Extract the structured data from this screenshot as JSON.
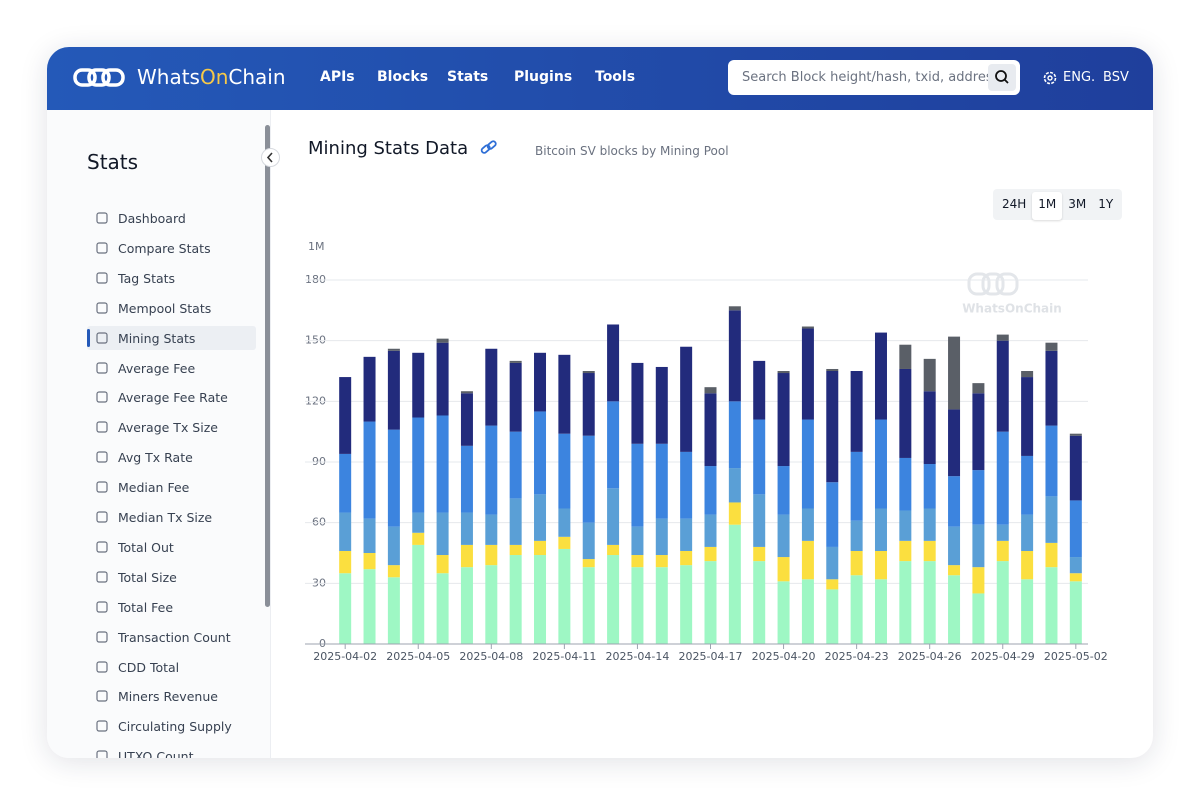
{
  "header": {
    "brand": [
      "Whats",
      "On",
      "Chain"
    ],
    "nav": [
      "APIs",
      "Blocks",
      "Stats",
      "Plugins",
      "Tools"
    ],
    "search_placeholder": "Search Block height/hash, txid, address",
    "language": "ENG.",
    "network": "BSV"
  },
  "sidebar": {
    "title": "Stats",
    "active_index": 4,
    "items": [
      "Dashboard",
      "Compare Stats",
      "Tag Stats",
      "Mempool Stats",
      "Mining Stats",
      "Average Fee",
      "Average Fee Rate",
      "Average Tx Size",
      "Avg Tx Rate",
      "Median Fee",
      "Median Tx Size",
      "Total Out",
      "Total Size",
      "Total Fee",
      "Transaction Count",
      "CDD Total",
      "Miners Revenue",
      "Circulating Supply",
      "UTXO Count"
    ]
  },
  "page": {
    "title": "Mining Stats Data",
    "subtitle": "Bitcoin SV blocks by Mining Pool",
    "ranges": [
      "24H",
      "1M",
      "3M",
      "1Y"
    ],
    "active_range": 1
  },
  "chart_data": {
    "type": "bar",
    "stacked": true,
    "y_label": "1M",
    "watermark": "WhatsOnChain",
    "grid": true,
    "ylim": [
      0,
      180
    ],
    "yticks": [
      0,
      30,
      60,
      90,
      120,
      150,
      180
    ],
    "categories": [
      "2025-04-02",
      null,
      null,
      "2025-04-05",
      null,
      null,
      "2025-04-08",
      null,
      null,
      "2025-04-11",
      null,
      null,
      "2025-04-14",
      null,
      null,
      "2025-04-17",
      null,
      null,
      "2025-04-20",
      null,
      null,
      "2025-04-23",
      null,
      null,
      "2025-04-26",
      null,
      null,
      "2025-04-29",
      null,
      null,
      "2025-05-02"
    ],
    "series": [
      {
        "color": "#9ef7c4",
        "values": [
          35,
          37,
          33,
          49,
          35,
          38,
          39,
          44,
          44,
          47,
          38,
          44,
          38,
          38,
          39,
          41,
          59,
          41,
          31,
          32,
          27,
          34,
          32,
          41,
          41,
          34,
          25,
          41,
          32,
          38,
          31
        ]
      },
      {
        "color": "#fbdf3f",
        "values": [
          11,
          8,
          6,
          6,
          9,
          11,
          10,
          5,
          7,
          6,
          4,
          5,
          6,
          6,
          7,
          7,
          11,
          7,
          12,
          19,
          5,
          12,
          14,
          10,
          10,
          5,
          13,
          10,
          14,
          12,
          4
        ]
      },
      {
        "color": "#5a9fd6",
        "values": [
          19,
          17,
          19,
          10,
          21,
          16,
          15,
          23,
          23,
          14,
          18,
          28,
          14,
          18,
          16,
          16,
          17,
          26,
          21,
          16,
          16,
          15,
          21,
          15,
          16,
          19,
          21,
          8,
          18,
          23,
          8
        ]
      },
      {
        "color": "#3c84df",
        "values": [
          29,
          48,
          48,
          47,
          48,
          33,
          44,
          33,
          41,
          37,
          43,
          43,
          41,
          37,
          33,
          24,
          33,
          37,
          24,
          44,
          32,
          34,
          44,
          26,
          22,
          25,
          27,
          46,
          29,
          35,
          28
        ]
      },
      {
        "color": "#222b7c",
        "values": [
          38,
          32,
          39,
          32,
          36,
          26,
          38,
          34,
          29,
          39,
          31,
          38,
          40,
          38,
          52,
          36,
          45,
          29,
          46,
          45,
          55,
          40,
          43,
          44,
          36,
          33,
          38,
          45,
          39,
          37,
          32
        ]
      },
      {
        "color": "#5a5f67",
        "values": [
          0,
          0,
          1,
          0,
          2,
          1,
          0,
          1,
          0,
          0,
          1,
          0,
          0,
          0,
          0,
          3,
          2,
          0,
          1,
          1,
          1,
          0,
          0,
          12,
          16,
          36,
          5,
          3,
          3,
          4,
          1
        ]
      }
    ]
  }
}
